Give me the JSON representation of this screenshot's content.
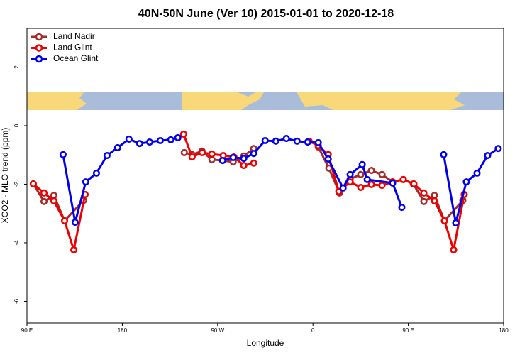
{
  "chart_data": {
    "type": "line",
    "title": "40N-50N June (Ver 10)   2015-01-01 to 2020-12-18",
    "x_label": "Longitude",
    "y_label": "XCO2 - MLO trend (ppm)",
    "xlim": [
      90,
      540
    ],
    "ylim": [
      -6.74,
      3.32
    ],
    "xticks": [
      {
        "value": 90,
        "label": "90 E"
      },
      180,
      {
        "value": 270,
        "label": "90 W"
      },
      {
        "value": 360,
        "label": "0"
      },
      {
        "value": 450,
        "label": "90 E"
      },
      {
        "value": 540,
        "label": "180"
      }
    ],
    "yticks": [
      2,
      0,
      -2,
      -4,
      -6
    ],
    "legend": "top-left",
    "series": [
      {
        "name": "Land Nadir",
        "color": "#a52a2a",
        "x": [
          96.0,
          106.1,
          115.4,
          125.5,
          143.5,
          null,
          238.5,
          245.9,
          255.3,
          264.6,
          274.7,
          284.7,
          294.7,
          304.1,
          null,
          365.0,
          375.0,
          385.1,
          395.1,
          405.1,
          415.2,
          425.2,
          435.2,
          445.3,
          454.7,
          464.7,
          474.7,
          484.1,
          501.5
        ],
        "values": [
          -1.99,
          -2.59,
          -2.38,
          -3.25,
          -2.55,
          null,
          -0.92,
          -0.99,
          -0.87,
          -1.16,
          -1.19,
          -1.24,
          -1.04,
          -0.78,
          null,
          -0.73,
          -1.45,
          -2.3,
          -1.82,
          -1.67,
          -1.53,
          -1.67,
          -1.92,
          -1.84,
          -1.99,
          -2.59,
          -2.38,
          -3.25,
          -2.55
        ]
      },
      {
        "name": "Land Glint",
        "color": "#ee0000",
        "x": [
          96.0,
          106.1,
          115.4,
          125.5,
          134.2,
          144.9,
          null,
          237.9,
          245.9,
          255.3,
          264.6,
          275.3,
          285.4,
          294.7,
          304.1,
          null,
          356.3,
          365.0,
          374.4,
          384.4,
          395.1,
          405.1,
          415.2,
          425.2,
          435.2,
          445.3,
          455.3,
          464.7,
          474.7,
          484.1,
          492.8,
          502.8
        ],
        "values": [
          -1.99,
          -2.3,
          -2.57,
          -3.25,
          -4.24,
          -2.35,
          null,
          -0.29,
          -1.07,
          -0.92,
          -0.97,
          -1.02,
          -1.07,
          -1.36,
          -1.28,
          null,
          -0.53,
          -0.68,
          -0.99,
          -2.25,
          -1.92,
          -2.11,
          -2.01,
          -2.04,
          -1.92,
          -1.84,
          -1.99,
          -2.3,
          -2.57,
          -3.25,
          -4.24,
          -2.35
        ]
      },
      {
        "name": "Ocean Glint",
        "color": "#0000ee",
        "x": [
          124.1,
          135.5,
          145.5,
          155.6,
          165.6,
          175.6,
          186.3,
          196.4,
          205.8,
          215.8,
          225.8,
          232.5,
          null,
          274.7,
          284.7,
          294.7,
          304.1,
          314.8,
          324.9,
          334.9,
          345.0,
          355.0,
          365.0,
          374.4,
          388.4,
          395.1,
          406.5,
          411.2,
          435.2,
          443.9,
          null,
          483.4,
          494.8,
          504.8,
          514.9,
          524.9,
          534.9
        ],
        "values": [
          -0.99,
          -3.3,
          -1.92,
          -1.62,
          -1.02,
          -0.75,
          -0.46,
          -0.61,
          -0.56,
          -0.51,
          -0.48,
          -0.41,
          null,
          -1.19,
          -1.09,
          -1.12,
          -0.95,
          -0.51,
          -0.53,
          -0.44,
          -0.53,
          -0.56,
          -0.58,
          -1.14,
          -2.13,
          -1.67,
          -1.33,
          -1.84,
          -1.96,
          -2.79,
          null,
          -0.99,
          -3.32,
          -1.92,
          -1.62,
          -1.02,
          -0.78
        ]
      }
    ]
  }
}
